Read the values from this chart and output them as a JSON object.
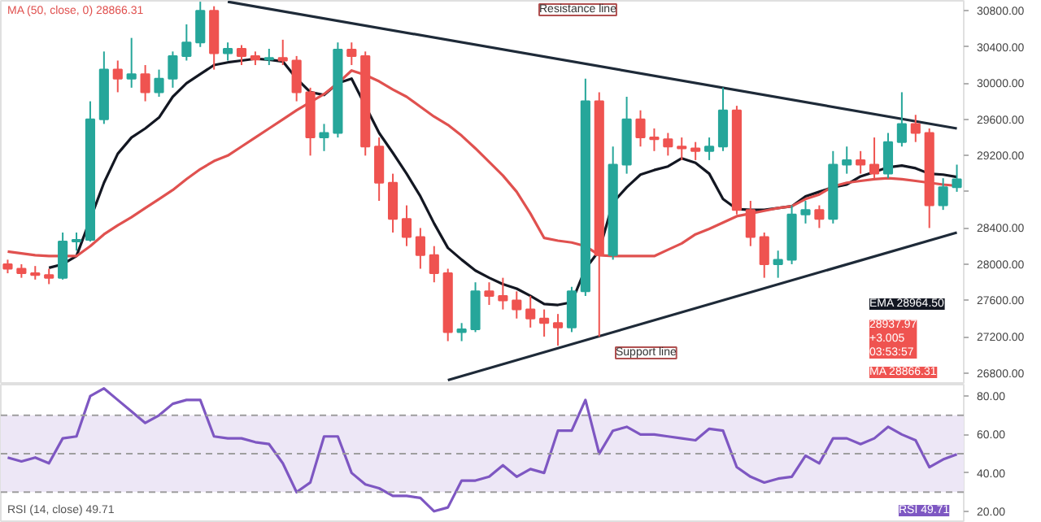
{
  "chart_data": [
    {
      "type": "candlestick",
      "categories": [
        null,
        null,
        null,
        null,
        null,
        null,
        null,
        null,
        null,
        null,
        null,
        null,
        null,
        null,
        null,
        null,
        null,
        null,
        null,
        null,
        null,
        null,
        null,
        null,
        null,
        null,
        null,
        null,
        null,
        null,
        null,
        null,
        null,
        null,
        null,
        null,
        null,
        null,
        null,
        null,
        null,
        null,
        null,
        null,
        null,
        null,
        null,
        null,
        null,
        null,
        null,
        null,
        null,
        null,
        null,
        null,
        null,
        null,
        null,
        null,
        null,
        null,
        null,
        null,
        null,
        null,
        null,
        null,
        null,
        null
      ],
      "ohlc": [
        [
          28000,
          28050,
          27900,
          27950
        ],
        [
          27950,
          28000,
          27850,
          27900
        ],
        [
          27900,
          27980,
          27830,
          27880
        ],
        [
          27880,
          27950,
          27780,
          27850
        ],
        [
          27850,
          28350,
          27830,
          28250
        ],
        [
          28250,
          28350,
          28150,
          28270
        ],
        [
          28270,
          29800,
          28250,
          29600
        ],
        [
          29600,
          30350,
          29550,
          30150
        ],
        [
          30150,
          30250,
          29900,
          30050
        ],
        [
          30050,
          30500,
          29950,
          30100
        ],
        [
          30100,
          30200,
          29800,
          29900
        ],
        [
          29900,
          30150,
          29850,
          30050
        ],
        [
          30050,
          30350,
          29950,
          30300
        ],
        [
          30300,
          30650,
          30250,
          30450
        ],
        [
          30450,
          30900,
          30400,
          30800
        ],
        [
          30800,
          30850,
          30150,
          30330
        ],
        [
          30330,
          30450,
          30250,
          30380
        ],
        [
          30380,
          30420,
          30200,
          30300
        ],
        [
          30300,
          30350,
          30200,
          30260
        ],
        [
          30260,
          30380,
          30200,
          30280
        ],
        [
          30280,
          30480,
          30200,
          30250
        ],
        [
          30250,
          30300,
          29800,
          29900
        ],
        [
          29900,
          29950,
          29200,
          29400
        ],
        [
          29400,
          29550,
          29250,
          29450
        ],
        [
          29450,
          30450,
          29400,
          30370
        ],
        [
          30370,
          30450,
          30200,
          30300
        ],
        [
          30300,
          30350,
          29200,
          29300
        ],
        [
          29300,
          29400,
          28700,
          28900
        ],
        [
          28900,
          29000,
          28350,
          28500
        ],
        [
          28500,
          28650,
          28200,
          28300
        ],
        [
          28300,
          28400,
          27950,
          28100
        ],
        [
          28100,
          28200,
          27800,
          27900
        ],
        [
          27900,
          27950,
          27150,
          27250
        ],
        [
          27250,
          27350,
          27150,
          27280
        ],
        [
          27280,
          27800,
          27250,
          27700
        ],
        [
          27700,
          27800,
          27550,
          27650
        ],
        [
          27650,
          27850,
          27500,
          27600
        ],
        [
          27600,
          27700,
          27400,
          27500
        ],
        [
          27500,
          27650,
          27300,
          27400
        ],
        [
          27400,
          27500,
          27200,
          27350
        ],
        [
          27350,
          27450,
          27100,
          27300
        ],
        [
          27300,
          27750,
          27250,
          27700
        ],
        [
          27700,
          30050,
          27650,
          29800
        ],
        [
          29800,
          29900,
          27200,
          28100
        ],
        [
          28100,
          29300,
          28050,
          29100
        ],
        [
          29100,
          29850,
          29000,
          29600
        ],
        [
          29600,
          29700,
          29300,
          29400
        ],
        [
          29400,
          29500,
          29250,
          29380
        ],
        [
          29380,
          29450,
          29200,
          29300
        ],
        [
          29300,
          29400,
          29150,
          29280
        ],
        [
          29280,
          29350,
          29150,
          29250
        ],
        [
          29250,
          29400,
          29150,
          29300
        ],
        [
          29300,
          29950,
          29250,
          29700
        ],
        [
          29700,
          29750,
          28550,
          28600
        ],
        [
          28600,
          28700,
          28200,
          28300
        ],
        [
          28300,
          28350,
          27850,
          28000
        ],
        [
          28000,
          28150,
          27850,
          28050
        ],
        [
          28050,
          28650,
          28000,
          28550
        ],
        [
          28550,
          28700,
          28450,
          28600
        ],
        [
          28600,
          28650,
          28400,
          28500
        ],
        [
          28500,
          29250,
          28450,
          29100
        ],
        [
          29100,
          29300,
          29000,
          29150
        ],
        [
          29150,
          29250,
          29000,
          29100
        ],
        [
          29100,
          29400,
          28950,
          29000
        ],
        [
          29000,
          29450,
          28950,
          29350
        ],
        [
          29350,
          29900,
          29300,
          29550
        ],
        [
          29550,
          29650,
          29350,
          29450
        ],
        [
          29450,
          29500,
          28400,
          28650
        ],
        [
          28650,
          28950,
          28600,
          28850
        ],
        [
          28850,
          29100,
          28800,
          28937.97
        ]
      ],
      "colors": [
        "#ef5350",
        "#ef5350",
        "#ef5350",
        "#ef5350",
        "#26a69a",
        "#26a69a",
        "#26a69a",
        "#26a69a",
        "#ef5350",
        "#26a69a",
        "#ef5350",
        "#26a69a",
        "#26a69a",
        "#26a69a",
        "#26a69a",
        "#ef5350",
        "#26a69a",
        "#ef5350",
        "#ef5350",
        "#26a69a",
        "#ef5350",
        "#ef5350",
        "#ef5350",
        "#26a69a",
        "#26a69a",
        "#ef5350",
        "#ef5350",
        "#ef5350",
        "#ef5350",
        "#ef5350",
        "#ef5350",
        "#ef5350",
        "#ef5350",
        "#26a69a",
        "#26a69a",
        "#ef5350",
        "#ef5350",
        "#ef5350",
        "#ef5350",
        "#ef5350",
        "#ef5350",
        "#26a69a",
        "#26a69a",
        "#ef5350",
        "#26a69a",
        "#26a69a",
        "#ef5350",
        "#ef5350",
        "#ef5350",
        "#ef5350",
        "#ef5350",
        "#26a69a",
        "#26a69a",
        "#ef5350",
        "#ef5350",
        "#ef5350",
        "#26a69a",
        "#26a69a",
        "#26a69a",
        "#ef5350",
        "#26a69a",
        "#26a69a",
        "#ef5350",
        "#ef5350",
        "#26a69a",
        "#26a69a",
        "#ef5350",
        "#ef5350",
        "#26a69a",
        "#26a69a"
      ],
      "series": [
        {
          "type": "line",
          "color": "#131722",
          "values": [
            null,
            null,
            null,
            27960,
            28000,
            28090,
            null,
            28900,
            29220,
            29400,
            29500,
            29620,
            29850,
            30000,
            30100,
            30200,
            30230,
            30250,
            30270,
            30260,
            30240,
            30050,
            29900,
            29870,
            30000,
            30050,
            null,
            29450,
            29230,
            29000,
            28750,
            28450,
            28180,
            28050,
            27930,
            27850,
            27780,
            27730,
            27650,
            27560,
            27550,
            27580,
            27950,
            28150,
            28680,
            28850,
            28990,
            29040,
            29080,
            29170,
            29120,
            29000,
            28720,
            28610,
            28600,
            28600,
            28620,
            28640,
            28750,
            28800,
            28850,
            28880,
            28970,
            29020,
            29070,
            29090,
            29060,
            29000,
            28990,
            28964.5
          ]
        },
        {
          "type": "line",
          "color": "#e0514f",
          "values": [
            28140,
            28120,
            28100,
            28090,
            28090,
            28090,
            28200,
            28330,
            28430,
            28520,
            28620,
            28720,
            28820,
            28940,
            29050,
            29140,
            29200,
            29300,
            29400,
            29500,
            29600,
            29700,
            29790,
            29880,
            30000,
            30140,
            30090,
            30020,
            29930,
            29850,
            29740,
            29630,
            29540,
            29420,
            29280,
            29130,
            28980,
            28800,
            28560,
            28290,
            28260,
            28240,
            28200,
            28100,
            28090,
            28090,
            28090,
            28090,
            28160,
            28230,
            28330,
            28390,
            28460,
            28530,
            28560,
            28590,
            28620,
            28640,
            28720,
            28770,
            28860,
            28900,
            28920,
            28940,
            28950,
            28940,
            28920,
            28900,
            28880,
            28866.31
          ]
        },
        {
          "type": "line",
          "color": "#1e2a38",
          "values": [
            null,
            null,
            null,
            null,
            null,
            null,
            null,
            null,
            null,
            null,
            null,
            null,
            null,
            null,
            null,
            null,
            30900,
            null,
            null,
            null,
            null,
            null,
            null,
            null,
            null,
            null,
            null,
            null,
            null,
            null,
            null,
            null,
            null,
            null,
            null,
            null,
            null,
            null,
            null,
            null,
            null,
            null,
            null,
            null,
            null,
            null,
            null,
            null,
            null,
            null,
            null,
            null,
            null,
            null,
            null,
            null,
            null,
            null,
            null,
            null,
            null,
            null,
            null,
            null,
            null,
            null,
            null,
            null,
            null,
            29500
          ]
        },
        {
          "type": "line",
          "color": "#1e2a38",
          "values": [
            null,
            null,
            null,
            null,
            null,
            null,
            null,
            null,
            null,
            null,
            null,
            null,
            null,
            null,
            null,
            null,
            null,
            null,
            null,
            null,
            null,
            null,
            null,
            null,
            null,
            null,
            null,
            null,
            null,
            null,
            null,
            null,
            26720,
            null,
            null,
            null,
            null,
            null,
            null,
            null,
            null,
            null,
            null,
            null,
            null,
            null,
            null,
            null,
            null,
            null,
            null,
            null,
            null,
            null,
            null,
            null,
            null,
            null,
            null,
            null,
            null,
            null,
            null,
            null,
            null,
            null,
            null,
            null,
            null,
            28350
          ]
        }
      ],
      "ylim": [
        26670,
        30910
      ],
      "yticks": [
        {
          "value": 26800,
          "label": "26800.00"
        },
        {
          "value": 27200,
          "label": "27200.00"
        },
        {
          "value": 27600,
          "label": "27600.00"
        },
        {
          "value": 28000,
          "label": "28000.00"
        },
        {
          "value": 28400,
          "label": "28400.00"
        },
        {
          "value": 28800,
          "label": null
        },
        {
          "value": 29200,
          "label": "29200.00"
        },
        {
          "value": 29600,
          "label": "29600.00"
        },
        {
          "value": 30000,
          "label": "30000.00"
        },
        {
          "value": 30400,
          "label": "30400.00"
        },
        {
          "value": 30800,
          "label": "30800.00"
        }
      ],
      "tick_labels": "y",
      "annotations": [
        "MA (50, close, 0) 28866.31",
        "Resistance line",
        "Support line",
        "EMA 28964.50",
        "28937.97\n+3.005\n03:53:57",
        "MA 28866.31"
      ]
    },
    {
      "type": "line",
      "categories": [
        null,
        null,
        null,
        null,
        null,
        null,
        null,
        null,
        null,
        null,
        null,
        null,
        null,
        null,
        null,
        null,
        null,
        null,
        null,
        null,
        null,
        null,
        null,
        null,
        null,
        null,
        null,
        null,
        null,
        null,
        null,
        null,
        null,
        null,
        null,
        null,
        null,
        null,
        null,
        null,
        null,
        null,
        null,
        null,
        null,
        null,
        null,
        null,
        null,
        null,
        null,
        null,
        null,
        null,
        null,
        null,
        null,
        null,
        null,
        null,
        null,
        null,
        null,
        null,
        null,
        null,
        null,
        null,
        null,
        null
      ],
      "series": [
        {
          "color": "#7e57c2",
          "values": [
            48,
            46,
            48,
            45,
            58,
            59,
            80,
            84,
            78,
            72,
            66,
            70,
            76,
            78,
            78,
            59,
            58,
            58,
            56,
            55,
            45,
            30,
            35,
            59,
            59,
            40,
            34,
            32,
            28,
            28,
            27,
            20,
            22,
            36,
            36,
            38,
            44,
            38,
            42,
            40,
            62,
            62,
            78,
            50,
            62,
            64,
            60,
            60,
            59,
            58,
            57,
            63,
            62,
            43,
            38,
            35,
            37,
            38,
            49,
            45,
            58,
            58,
            55,
            58,
            64,
            60,
            57,
            43,
            47,
            49.71
          ]
        }
      ],
      "ylim": [
        14,
        86
      ],
      "yticks": [
        {
          "value": 20,
          "label": "20.00"
        },
        {
          "value": 40,
          "label": "40.00"
        },
        {
          "value": 60,
          "label": "60.00"
        },
        {
          "value": 80,
          "label": "80.00"
        }
      ],
      "bands": [
        {
          "axis": "y",
          "from": 30,
          "to": 70,
          "color": "#ede7f6"
        }
      ],
      "ref_lines": [
        {
          "axis": "y",
          "value": 70,
          "color": "#9e9e9e",
          "line_style": "dashed"
        },
        {
          "axis": "y",
          "value": 50,
          "color": "#9e9e9e",
          "line_style": "dashed"
        },
        {
          "axis": "y",
          "value": 30,
          "color": "#9e9e9e",
          "line_style": "dashed"
        }
      ],
      "tick_labels": "y",
      "annotations": [
        "RSI (14, close) 49.71",
        "RSI 49.71"
      ]
    }
  ]
}
